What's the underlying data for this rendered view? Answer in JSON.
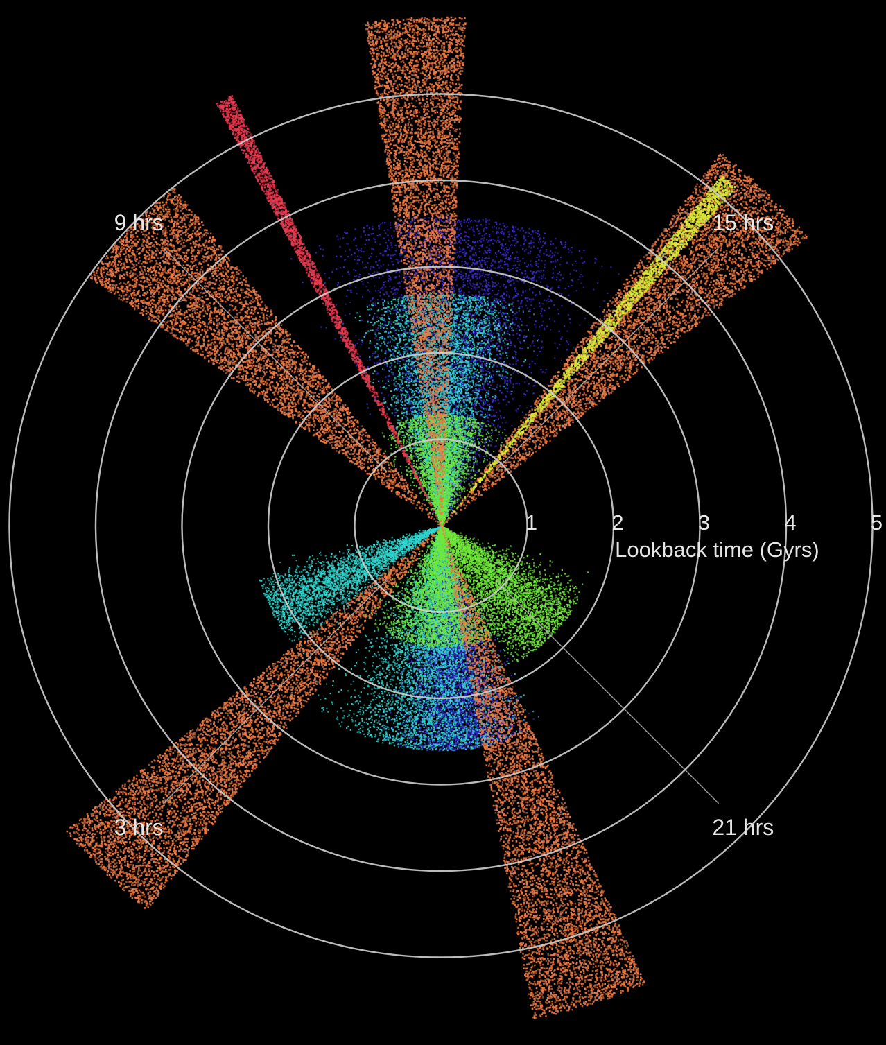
{
  "chart_data": {
    "type": "scatter",
    "projection": "polar wedge plot (lookback time vs. right ascension)",
    "radial_axis": {
      "label": "Lookback time (Gyrs)",
      "ticks": [
        1,
        2,
        3,
        4,
        5
      ],
      "tick_labels": [
        "1",
        "2",
        "3",
        "4",
        "5"
      ],
      "range": [
        0,
        5
      ]
    },
    "angular_axis": {
      "unit": "hrs",
      "labeled_hours": [
        {
          "hour": 9,
          "label": "9 hrs"
        },
        {
          "hour": 15,
          "label": "15 hrs"
        },
        {
          "hour": 3,
          "label": "3 hrs"
        },
        {
          "hour": 21,
          "label": "21 hrs"
        }
      ]
    },
    "grid": true,
    "background": "#000000",
    "layers": [
      {
        "id": "blue-clouds",
        "color": "#3a2bd9",
        "kind": "fan",
        "lobes": [
          {
            "direction_hr": 12.3,
            "half_width_hr": 2.6,
            "max_lookback_gyr": 3.6
          },
          {
            "direction_hr": 23.7,
            "half_width_hr": 1.6,
            "max_lookback_gyr": 2.6
          }
        ]
      },
      {
        "id": "cyan-clouds",
        "color": "#2fd6cf",
        "kind": "fan",
        "lobes": [
          {
            "direction_hr": 12.0,
            "half_width_hr": 2.0,
            "max_lookback_gyr": 2.7
          },
          {
            "direction_hr": 0.3,
            "half_width_hr": 2.4,
            "max_lookback_gyr": 2.6
          },
          {
            "direction_hr": 4.2,
            "half_width_hr": 1.2,
            "max_lookback_gyr": 2.2
          }
        ]
      },
      {
        "id": "green-clouds",
        "color": "#6fe83a",
        "kind": "fan",
        "lobes": [
          {
            "direction_hr": 12.0,
            "half_width_hr": 3.0,
            "max_lookback_gyr": 1.3
          },
          {
            "direction_hr": 0.0,
            "half_width_hr": 3.4,
            "max_lookback_gyr": 1.4
          },
          {
            "direction_hr": 20.9,
            "half_width_hr": 2.0,
            "max_lookback_gyr": 1.8
          }
        ]
      },
      {
        "id": "orange-wedges",
        "color": "#f07a45",
        "kind": "wedge",
        "wedges": [
          {
            "direction_hr": 8.9,
            "half_width_hr": 0.55,
            "max_lookback_gyr": 5.0
          },
          {
            "direction_hr": 11.8,
            "half_width_hr": 0.38,
            "max_lookback_gyr": 5.9
          },
          {
            "direction_hr": 14.95,
            "half_width_hr": 0.5,
            "max_lookback_gyr": 5.4
          },
          {
            "direction_hr": 2.95,
            "half_width_hr": 0.45,
            "max_lookback_gyr": 5.6
          },
          {
            "direction_hr": 22.85,
            "half_width_hr": 0.45,
            "max_lookback_gyr": 5.8
          }
        ]
      },
      {
        "id": "red-line",
        "color": "#e8394f",
        "kind": "wedge",
        "wedges": [
          {
            "direction_hr": 10.2,
            "half_width_hr": 0.07,
            "max_lookback_gyr": 5.55
          }
        ]
      },
      {
        "id": "yellow-line",
        "color": "#d8e83a",
        "kind": "wedge",
        "wedges": [
          {
            "direction_hr": 14.65,
            "half_width_hr": 0.08,
            "max_lookback_gyr": 5.2
          }
        ]
      }
    ]
  }
}
